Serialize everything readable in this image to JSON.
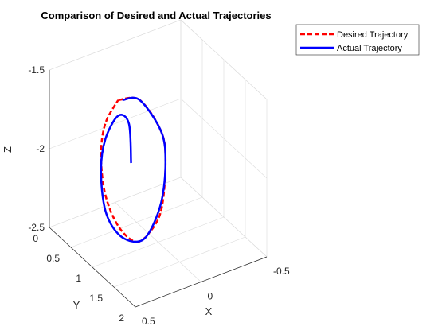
{
  "chart_data": {
    "type": "line3d",
    "title": "Comparison of Desired and Actual Trajectories",
    "xlabel": "X",
    "ylabel": "Y",
    "zlabel": "Z",
    "xlim": [
      -0.5,
      0.5
    ],
    "ylim": [
      0,
      2
    ],
    "zlim": [
      -2.5,
      -1.5
    ],
    "xticks": [
      {
        "v": -0.5,
        "label": "-0.5"
      },
      {
        "v": 0,
        "label": "0"
      },
      {
        "v": 0.5,
        "label": "0.5"
      }
    ],
    "yticks": [
      {
        "v": 0,
        "label": "0"
      },
      {
        "v": 0.5,
        "label": "0.5"
      },
      {
        "v": 1,
        "label": "1"
      },
      {
        "v": 1.5,
        "label": "1.5"
      },
      {
        "v": 2,
        "label": "2"
      }
    ],
    "zticks": [
      {
        "v": -2.5,
        "label": "-2.5"
      },
      {
        "v": -2,
        "label": "-2"
      },
      {
        "v": -1.5,
        "label": "-1.5"
      }
    ],
    "grid": true,
    "legend_position": "top-right",
    "series": [
      {
        "name": "Desired Trajectory",
        "color": "#ff0000",
        "style": "dashed",
        "points": [
          [
            0,
            0.6,
            -1.6
          ],
          [
            0,
            1.1,
            -1.6
          ],
          [
            0,
            1.6,
            -1.8
          ],
          [
            0,
            1.7,
            -2.0
          ],
          [
            0,
            1.6,
            -2.3
          ],
          [
            0,
            1.3,
            -2.45
          ],
          [
            0,
            1.0,
            -2.5
          ],
          [
            0,
            0.6,
            -2.4
          ],
          [
            0,
            0.3,
            -2.2
          ],
          [
            0,
            0.2,
            -1.95
          ],
          [
            0,
            0.3,
            -1.75
          ],
          [
            0,
            0.6,
            -1.6
          ]
        ]
      },
      {
        "name": "Actual Trajectory",
        "color": "#0000ff",
        "style": "solid",
        "points": [
          [
            0,
            0.9,
            -2.0
          ],
          [
            0,
            0.85,
            -1.75
          ],
          [
            0,
            0.6,
            -1.7
          ],
          [
            0,
            0.3,
            -1.85
          ],
          [
            0,
            0.2,
            -2.05
          ],
          [
            0,
            0.3,
            -2.3
          ],
          [
            0,
            0.6,
            -2.45
          ],
          [
            0,
            1.0,
            -2.5
          ],
          [
            0,
            1.3,
            -2.45
          ],
          [
            0,
            1.6,
            -2.25
          ],
          [
            0,
            1.7,
            -2.0
          ],
          [
            0,
            1.6,
            -1.8
          ],
          [
            0,
            1.1,
            -1.6
          ],
          [
            0,
            0.7,
            -1.6
          ]
        ]
      }
    ]
  }
}
